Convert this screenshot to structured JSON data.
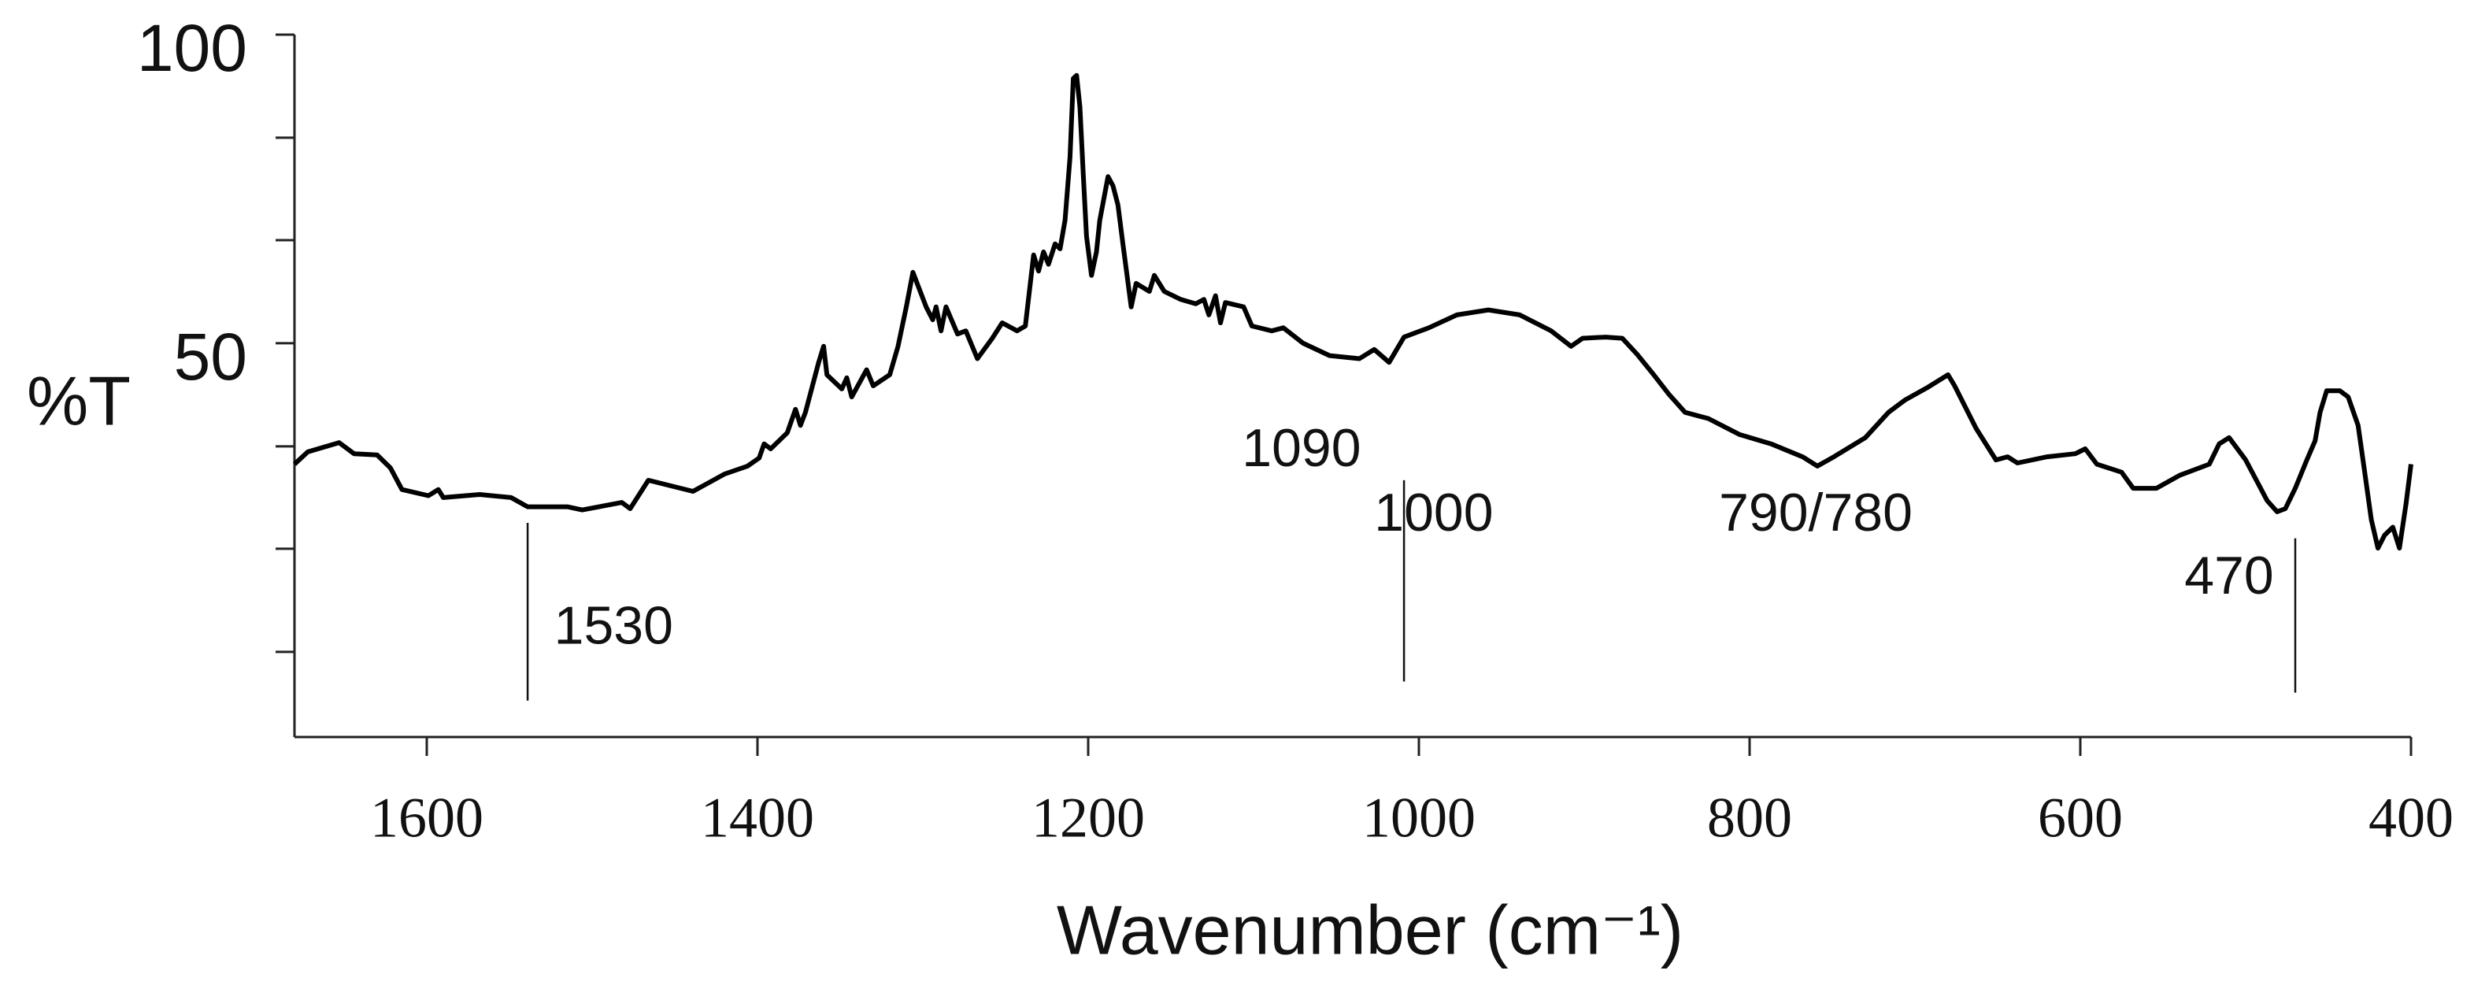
{
  "chart_data": {
    "type": "line",
    "ylabel": "%T",
    "xlabel": "Wavenumber (cm⁻¹)",
    "color": "#000000",
    "xlim": [
      1680,
      400
    ],
    "ylim": [
      -13.8,
      100
    ],
    "xticks": [
      1600,
      1400,
      1200,
      1000,
      800,
      600,
      400
    ],
    "yticks": [
      50,
      100
    ],
    "yminor_ticks": [
      0,
      16.7,
      33.3,
      66.7,
      83.3
    ],
    "x": [
      1680,
      1672,
      1653,
      1644,
      1630,
      1622,
      1615,
      1599,
      1593,
      1590,
      1568,
      1549,
      1539,
      1515,
      1506,
      1482,
      1477,
      1466,
      1439,
      1420,
      1406,
      1399,
      1396,
      1392,
      1382,
      1377,
      1374,
      1371,
      1363,
      1360,
      1358,
      1349,
      1346,
      1343,
      1334,
      1330,
      1320,
      1315,
      1310,
      1306,
      1298,
      1294,
      1292,
      1289,
      1286,
      1279,
      1274,
      1267,
      1258,
      1252,
      1243,
      1238,
      1235,
      1233,
      1230,
      1227,
      1224,
      1220,
      1217,
      1214,
      1211,
      1209,
      1207,
      1205,
      1203,
      1201,
      1198,
      1195,
      1193,
      1188,
      1185,
      1182,
      1179,
      1174,
      1171,
      1163,
      1160,
      1154,
      1144,
      1135,
      1130,
      1127,
      1123,
      1120,
      1117,
      1106,
      1101,
      1089,
      1082,
      1070,
      1054,
      1036,
      1027,
      1018,
      1009,
      994,
      977,
      958,
      939,
      920,
      908,
      901,
      887,
      877,
      868,
      858,
      849,
      839,
      825,
      806,
      787,
      768,
      759,
      749,
      730,
      716,
      706,
      692,
      680,
      676,
      663,
      651,
      644,
      638,
      620,
      603,
      597,
      590,
      575,
      568,
      554,
      540,
      522,
      516,
      510,
      500,
      487,
      481,
      476,
      470,
      463,
      458,
      455,
      451,
      443,
      438,
      432,
      428,
      424,
      420,
      416,
      411,
      407,
      403,
      400
    ],
    "values": [
      30.4,
      32.4,
      33.9,
      32.1,
      31.9,
      29.8,
      26.3,
      25.3,
      26.3,
      25.0,
      25.5,
      25.0,
      23.5,
      23.5,
      23.0,
      24.2,
      23.2,
      27.8,
      26.0,
      28.8,
      30.1,
      31.4,
      33.7,
      32.9,
      35.5,
      39.3,
      36.7,
      38.8,
      46.9,
      49.5,
      44.9,
      42.6,
      44.4,
      41.3,
      45.7,
      43.1,
      44.9,
      49.5,
      55.9,
      61.5,
      55.9,
      53.8,
      55.9,
      52.0,
      55.9,
      51.5,
      52.0,
      47.5,
      50.8,
      53.3,
      52.0,
      52.8,
      59.7,
      64.3,
      61.7,
      64.8,
      62.8,
      66.1,
      65.3,
      69.9,
      80.1,
      92.9,
      93.4,
      88.3,
      77.5,
      67.3,
      61.0,
      64.8,
      69.9,
      77.0,
      75.5,
      72.4,
      66.1,
      55.9,
      59.7,
      58.4,
      61.0,
      58.4,
      57.1,
      56.4,
      57.1,
      54.6,
      57.7,
      53.3,
      56.6,
      55.9,
      52.8,
      52.0,
      52.5,
      50.0,
      48.0,
      47.5,
      49.0,
      46.9,
      51.0,
      52.5,
      54.6,
      55.4,
      54.6,
      52.0,
      49.5,
      50.8,
      51.0,
      50.8,
      48.2,
      44.9,
      41.8,
      38.8,
      37.8,
      35.2,
      33.7,
      31.6,
      30.1,
      31.6,
      34.7,
      38.8,
      40.8,
      42.9,
      44.9,
      43.1,
      36.2,
      31.1,
      31.6,
      30.6,
      31.6,
      32.1,
      32.9,
      30.4,
      29.1,
      26.5,
      26.5,
      28.6,
      30.4,
      33.7,
      34.7,
      31.1,
      24.5,
      22.7,
      23.2,
      26.5,
      31.1,
      34.2,
      38.8,
      42.3,
      42.3,
      41.3,
      36.7,
      29.1,
      21.4,
      16.8,
      18.9,
      20.2,
      16.8,
      24.0,
      30.4
    ],
    "markers": [
      {
        "x": 1539,
        "y": [
          20.9,
          -7.9
        ]
      },
      {
        "x": 1009,
        "y": [
          27.8,
          -4.8
        ]
      },
      {
        "x": 470,
        "y": [
          18.4,
          -6.6
        ]
      }
    ],
    "annotations": [
      {
        "text": "1530",
        "x": 1487,
        "y": 3.6
      },
      {
        "text": "1090",
        "x": 1071,
        "y": 32.4
      },
      {
        "text": "1000",
        "x": 991,
        "y": 21.9
      },
      {
        "text": "790/780",
        "x": 760,
        "y": 21.9
      },
      {
        "text": "470",
        "x": 510,
        "y": 11.7
      }
    ]
  }
}
